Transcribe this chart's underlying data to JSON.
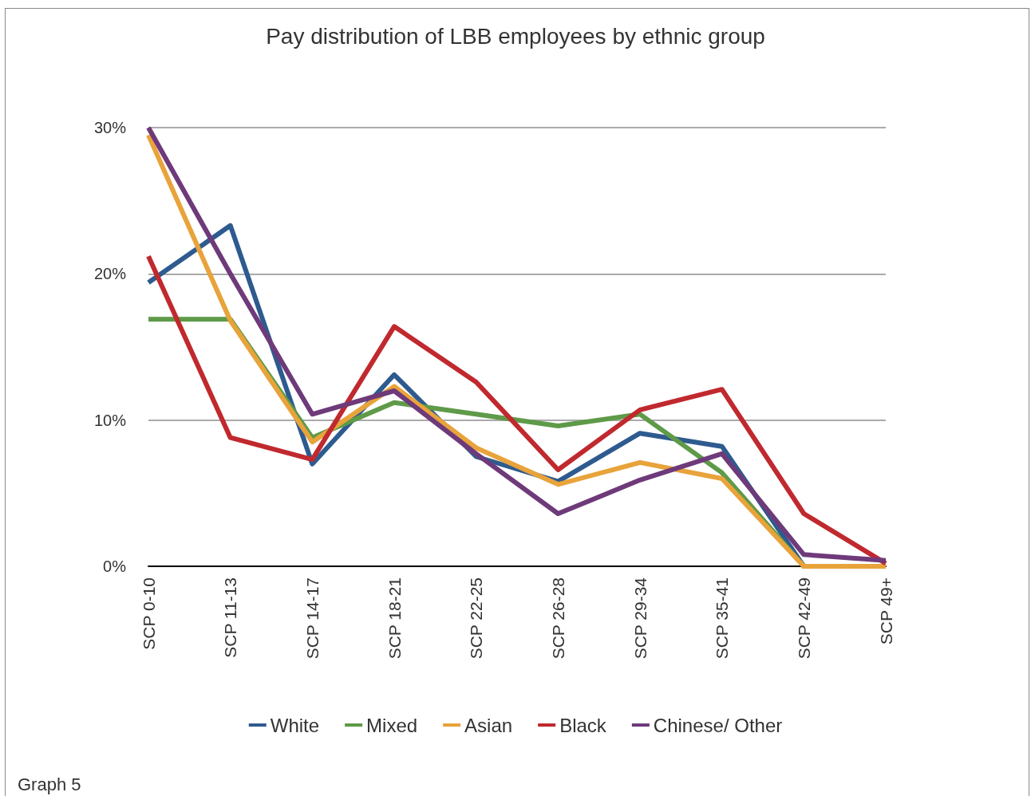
{
  "chart_data": {
    "type": "line",
    "title": "Pay distribution of LBB employees by ethnic group",
    "categories": [
      "SCP 0-10",
      "SCP 11-13",
      "SCP 14-17",
      "SCP 18-21",
      "SCP 22-25",
      "SCP 26-28",
      "SCP 29-34",
      "SCP 35-41",
      "SCP 42-49",
      "SCP 49+"
    ],
    "series": [
      {
        "name": "White",
        "color": "#2e5b8f",
        "values": [
          19.4,
          23.3,
          7.0,
          13.1,
          7.5,
          5.8,
          9.1,
          8.2,
          0,
          0
        ]
      },
      {
        "name": "Mixed",
        "color": "#5e9a48",
        "values": [
          16.9,
          16.9,
          8.8,
          11.2,
          10.4,
          9.6,
          10.4,
          6.4,
          0,
          0
        ]
      },
      {
        "name": "Asian",
        "color": "#e8a33b",
        "values": [
          29.5,
          16.8,
          8.5,
          12.3,
          8.1,
          5.6,
          7.1,
          6.0,
          0,
          0
        ]
      },
      {
        "name": "Black",
        "color": "#c0292e",
        "values": [
          21.2,
          8.8,
          7.3,
          16.4,
          12.6,
          6.6,
          10.7,
          12.1,
          3.6,
          0.2
        ]
      },
      {
        "name": "Chinese/ Other",
        "color": "#6e3a7a",
        "values": [
          30.0,
          20.0,
          10.4,
          12.0,
          7.7,
          3.6,
          5.9,
          7.7,
          0.8,
          0.4
        ]
      }
    ],
    "ylim": [
      0,
      30
    ],
    "yticks": [
      {
        "value": 0,
        "label": "0%"
      },
      {
        "value": 10,
        "label": "10%"
      },
      {
        "value": 20,
        "label": "20%"
      },
      {
        "value": 30,
        "label": "30%"
      }
    ],
    "grid": "y",
    "legend": "bottom",
    "marker": "none",
    "line_style": "solid",
    "annotations": [
      "Graph 5"
    ]
  }
}
